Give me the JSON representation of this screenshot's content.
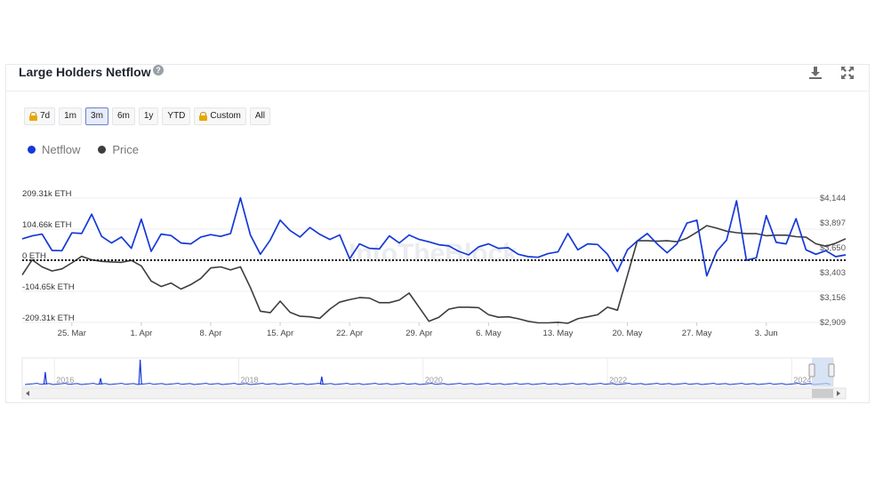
{
  "header": {
    "title": "Large Holders Netflow",
    "help_glyph": "?"
  },
  "range_buttons": [
    {
      "label": "7d",
      "locked": true,
      "active": false
    },
    {
      "label": "1m",
      "locked": false,
      "active": false
    },
    {
      "label": "3m",
      "locked": false,
      "active": true
    },
    {
      "label": "6m",
      "locked": false,
      "active": false
    },
    {
      "label": "1y",
      "locked": false,
      "active": false
    },
    {
      "label": "YTD",
      "locked": false,
      "active": false
    },
    {
      "label": "Custom",
      "locked": true,
      "active": false
    },
    {
      "label": "All",
      "locked": false,
      "active": false
    }
  ],
  "watermark": "IntoTheBlock",
  "colors": {
    "netflow": "#1538d8",
    "price": "#3d3d3d",
    "zero_line": "#111111",
    "navigator_line": "#1538d8",
    "navigator_mask": "#c7d7ef"
  },
  "chart_data": {
    "type": "line",
    "title": "Large Holders Netflow",
    "legend_placement": "top-left",
    "grid": "horizontal",
    "x_tick_labels": [
      "25. Mar",
      "1. Apr",
      "8. Apr",
      "15. Apr",
      "22. Apr",
      "29. Apr",
      "6. May",
      "13. May",
      "20. May",
      "27. May",
      "3. Jun"
    ],
    "x_start": "2024-03-20",
    "left_axis": {
      "unit": "ETH",
      "ticks": [
        209.31,
        104.66,
        0,
        -104.65,
        -209.31
      ],
      "tick_labels": [
        "209.31k ETH",
        "104.66k ETH",
        "0 ETH",
        "-104.65k ETH",
        "-209.31k ETH"
      ],
      "range": [
        -209.31,
        209.31
      ]
    },
    "right_axis": {
      "unit": "USD",
      "ticks": [
        4144,
        3897,
        3650,
        3403,
        3156,
        2909
      ],
      "tick_labels": [
        "$4,144",
        "$3,897",
        "$3,650",
        "$3,403",
        "$3,156",
        "$2,909"
      ],
      "range": [
        2909,
        4144
      ]
    },
    "series": [
      {
        "name": "Netflow",
        "axis": "left",
        "unit": "thousand ETH",
        "values": [
          72,
          82,
          88,
          33,
          32,
          92,
          90,
          155,
          80,
          58,
          78,
          40,
          138,
          30,
          88,
          83,
          58,
          55,
          78,
          86,
          80,
          90,
          210,
          85,
          20,
          68,
          135,
          100,
          78,
          110,
          87,
          70,
          85,
          5,
          55,
          40,
          38,
          82,
          58,
          85,
          70,
          62,
          52,
          48,
          30,
          18,
          45,
          55,
          40,
          42,
          20,
          12,
          10,
          22,
          28,
          90,
          35,
          55,
          53,
          20,
          -38,
          35,
          65,
          90,
          55,
          25,
          55,
          125,
          135,
          -53,
          30,
          68,
          200,
          0,
          8,
          150,
          60,
          55,
          140,
          35,
          20,
          32,
          12,
          18
        ]
      },
      {
        "name": "Price",
        "axis": "right",
        "unit": "USD",
        "values": [
          3380,
          3530,
          3460,
          3420,
          3440,
          3500,
          3565,
          3530,
          3515,
          3510,
          3505,
          3525,
          3470,
          3320,
          3265,
          3300,
          3240,
          3285,
          3345,
          3450,
          3460,
          3430,
          3460,
          3255,
          3020,
          3005,
          3120,
          3010,
          2970,
          2965,
          2950,
          3040,
          3110,
          3135,
          3155,
          3150,
          3105,
          3105,
          3130,
          3200,
          3060,
          2920,
          2960,
          3040,
          3060,
          3060,
          3055,
          2985,
          2960,
          2965,
          2945,
          2920,
          2905,
          2905,
          2910,
          2900,
          2945,
          2965,
          2985,
          3060,
          3030,
          3375,
          3720,
          3720,
          3715,
          3720,
          3710,
          3745,
          3805,
          3870,
          3845,
          3815,
          3800,
          3790,
          3790,
          3770,
          3775,
          3775,
          3760,
          3755,
          3690,
          3665,
          3695,
          3740
        ]
      }
    ],
    "navigator": {
      "year_labels": [
        "2016",
        "2018",
        "2020",
        "2022",
        "2024"
      ],
      "spikes": [
        {
          "year": 2015.9,
          "height": 0.5
        },
        {
          "year": 2016.5,
          "height": 0.25
        },
        {
          "year": 2016.93,
          "height": 1.0
        },
        {
          "year": 2018.9,
          "height": 0.32
        }
      ]
    }
  }
}
